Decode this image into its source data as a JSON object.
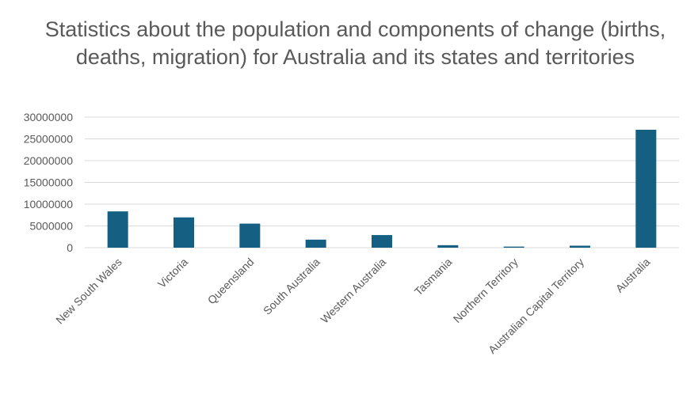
{
  "chart_data": {
    "type": "bar",
    "title": "Statistics about the population and components of change (births, deaths, migration) for Australia and its states and territories",
    "xlabel": "",
    "ylabel": "",
    "categories": [
      "New South Wales",
      "Victoria",
      "Queensland",
      "South Australia",
      "Western Australia",
      "Tasmania",
      "Northern Territory",
      "Australian Capital Territory",
      "Australia"
    ],
    "values": [
      8340000,
      6960000,
      5530000,
      1850000,
      2900000,
      575000,
      250000,
      460000,
      27100000
    ],
    "yticks": [
      "0",
      "5000000",
      "10000000",
      "15000000",
      "20000000",
      "25000000",
      "30000000"
    ],
    "ylim": [
      0,
      30000000
    ],
    "grid": true,
    "legend": "none",
    "bar_color": "#156082"
  }
}
